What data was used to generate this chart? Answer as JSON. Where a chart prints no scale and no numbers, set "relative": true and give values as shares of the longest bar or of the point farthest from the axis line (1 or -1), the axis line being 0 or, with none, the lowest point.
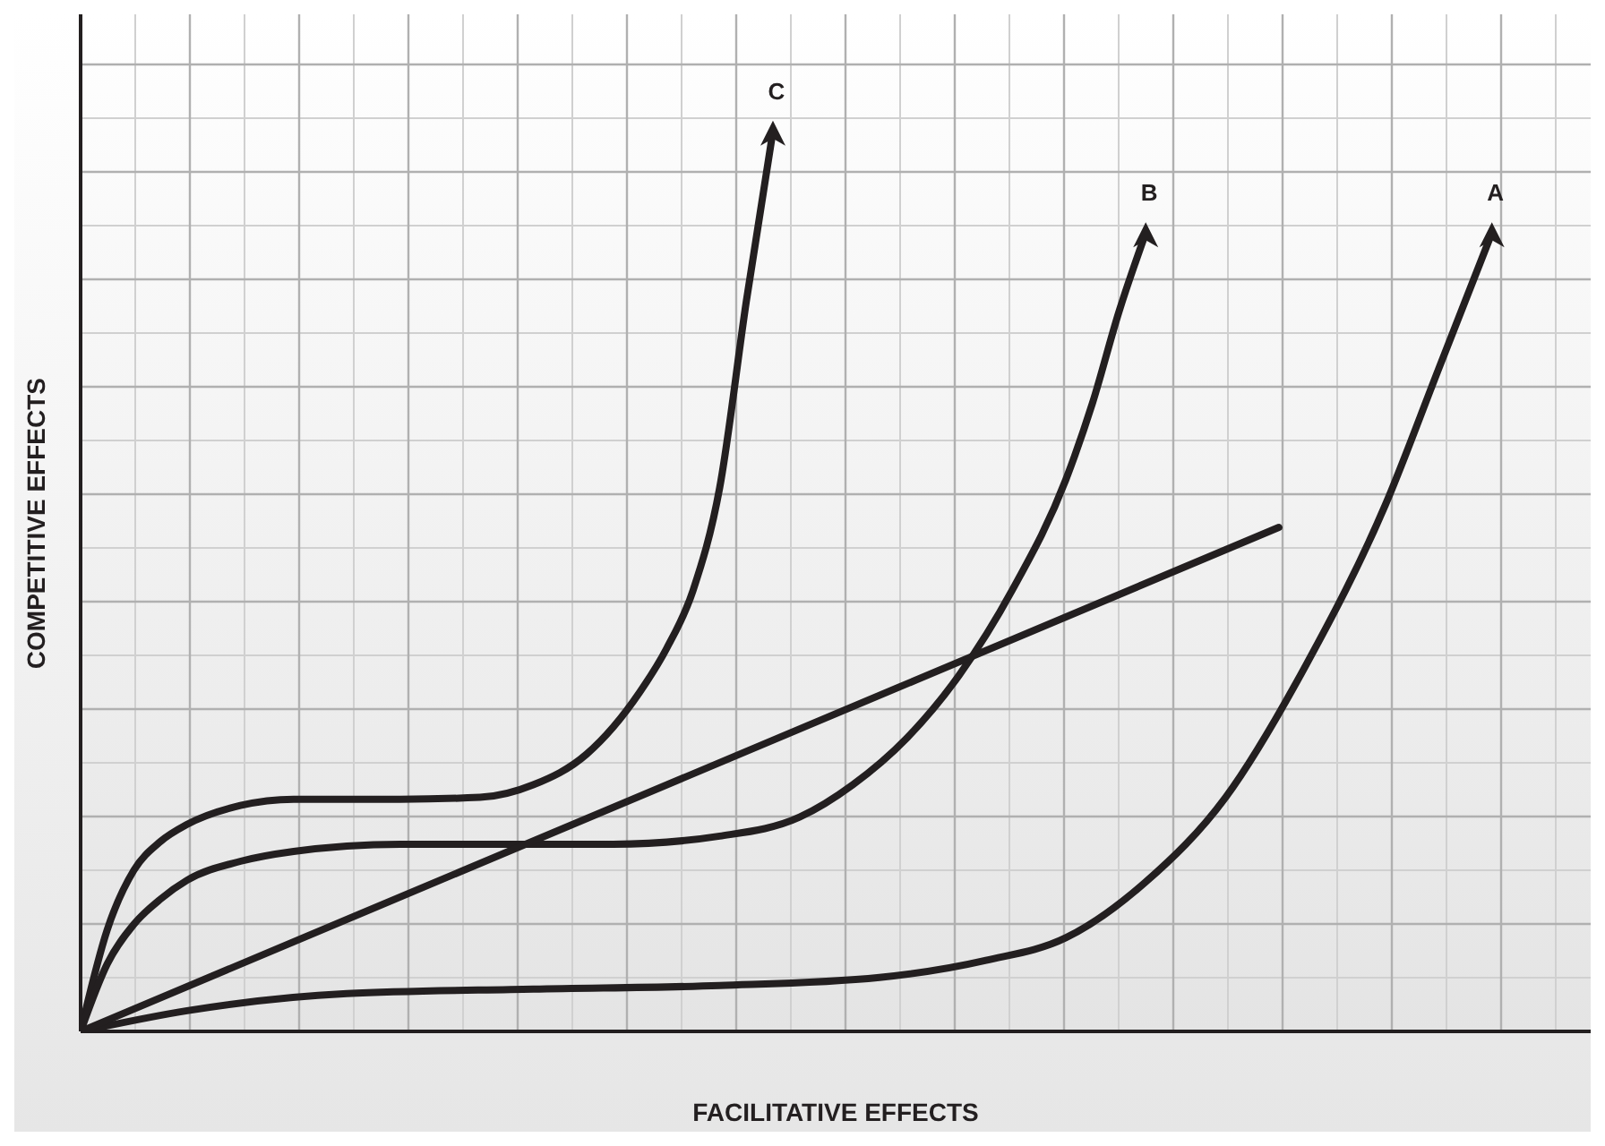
{
  "chart_data": {
    "type": "line",
    "relative": true,
    "xlabel": "FACILITATIVE EFFECTS",
    "ylabel": "COMPETITIVE EFFECTS",
    "grid": true,
    "legend": false,
    "marker": "none",
    "line_style": "solid",
    "categories": [
      null,
      null,
      null,
      null,
      null,
      null,
      null,
      null,
      null,
      null,
      null,
      null,
      null,
      null,
      null,
      null,
      null,
      null,
      null,
      null,
      null,
      null,
      null,
      null,
      null,
      null,
      null,
      null,
      null,
      null,
      null,
      null,
      null,
      null,
      null,
      null,
      null,
      null,
      null,
      null,
      null,
      null,
      null,
      null,
      null,
      null,
      null,
      null,
      null,
      null,
      null,
      null,
      null,
      null
    ],
    "series": [
      {
        "name": "C",
        "color": "#231f20",
        "values": [
          0,
          0.113,
          0.179,
          0.211,
          0.23,
          null,
          0.251,
          null,
          0.258,
          null,
          null,
          null,
          0.258,
          null,
          null,
          0.26,
          null,
          0.274,
          null,
          0.308,
          null,
          0.377,
          0.425,
          0.49,
          0.604,
          0.811,
          1.0,
          null,
          null,
          null,
          null,
          null,
          null,
          null,
          null,
          null,
          null,
          null,
          null,
          null,
          null,
          null,
          null,
          null,
          null,
          null,
          null,
          null,
          null,
          null,
          null,
          null,
          null,
          null
        ]
      },
      {
        "name": "B",
        "color": "#231f20",
        "values": [
          0,
          0.075,
          0.119,
          0.147,
          0.168,
          null,
          0.189,
          null,
          0.2,
          null,
          null,
          null,
          0.208,
          null,
          null,
          null,
          0.208,
          null,
          null,
          null,
          0.208,
          null,
          null,
          null,
          0.217,
          null,
          null,
          0.238,
          null,
          0.274,
          null,
          0.325,
          null,
          0.396,
          null,
          0.491,
          null,
          0.613,
          0.698,
          0.8,
          0.887,
          null,
          null,
          null,
          null,
          null,
          null,
          null,
          null,
          null,
          null,
          null,
          null,
          null
        ]
      },
      {
        "name": "A",
        "color": "#231f20",
        "values": [
          0,
          null,
          null,
          null,
          0.023,
          null,
          null,
          null,
          null,
          null,
          0.042,
          null,
          null,
          null,
          null,
          null,
          null,
          0.047,
          null,
          null,
          null,
          null,
          null,
          null,
          0.051,
          null,
          null,
          null,
          null,
          null,
          0.06,
          null,
          null,
          null,
          0.079,
          null,
          null,
          0.104,
          null,
          null,
          0.166,
          null,
          null,
          0.26,
          null,
          null,
          0.406,
          null,
          null,
          0.585,
          null,
          0.736,
          null,
          0.887
        ]
      },
      {
        "color": "#231f20",
        "values": [
          0,
          null,
          null,
          null,
          null,
          null,
          null,
          null,
          null,
          null,
          null,
          null,
          null,
          null,
          null,
          null,
          null,
          null,
          null,
          null,
          null,
          null,
          null,
          null,
          null,
          null,
          null,
          null,
          null,
          null,
          null,
          null,
          null,
          null,
          null,
          null,
          null,
          null,
          null,
          null,
          null,
          null,
          null,
          null,
          null,
          0.56,
          null,
          null,
          null,
          null,
          null,
          null,
          null,
          null
        ]
      }
    ]
  }
}
